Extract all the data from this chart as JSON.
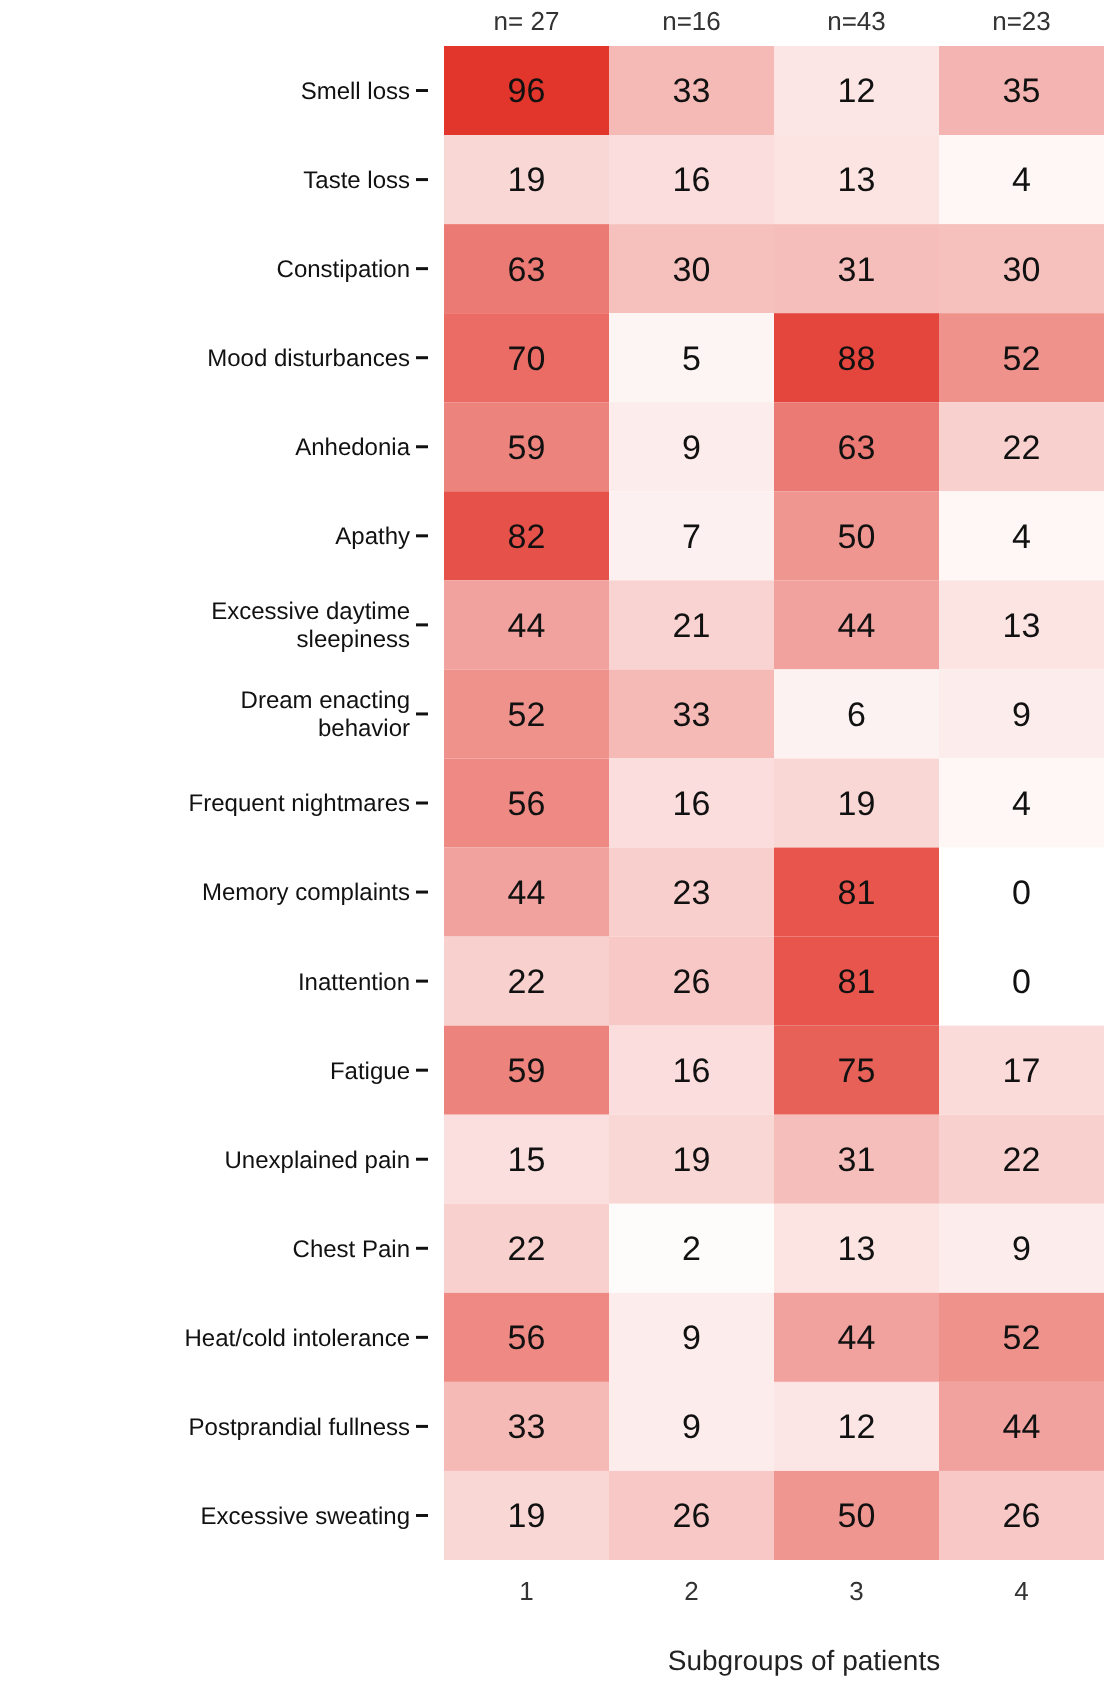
{
  "chart_data": {
    "type": "heatmap",
    "xlabel": "Subgroups of patients",
    "categories": [
      "1",
      "2",
      "3",
      "4"
    ],
    "y_categories": [
      "Smell loss",
      "Taste loss",
      "Constipation",
      "Mood disturbances",
      "Anhedonia",
      "Apathy",
      "Excessive daytime sleepiness",
      "Dream enacting behavior",
      "Frequent nightmares",
      "Memory complaints",
      "Inattention",
      "Fatigue",
      "Unexplained pain",
      "Chest Pain",
      "Heat/cold intolerance",
      "Postprandial fullness",
      "Excessive sweating"
    ],
    "cells": [
      [
        96,
        33,
        12,
        35
      ],
      [
        19,
        16,
        13,
        4
      ],
      [
        63,
        30,
        31,
        30
      ],
      [
        70,
        5,
        88,
        52
      ],
      [
        59,
        9,
        63,
        22
      ],
      [
        82,
        7,
        50,
        4
      ],
      [
        44,
        21,
        44,
        13
      ],
      [
        52,
        33,
        6,
        9
      ],
      [
        56,
        16,
        19,
        4
      ],
      [
        44,
        23,
        81,
        0
      ],
      [
        22,
        26,
        81,
        0
      ],
      [
        59,
        16,
        75,
        17
      ],
      [
        15,
        19,
        31,
        22
      ],
      [
        22,
        2,
        13,
        9
      ],
      [
        56,
        9,
        44,
        52
      ],
      [
        33,
        9,
        12,
        44
      ],
      [
        19,
        26,
        50,
        26
      ]
    ],
    "data_labels": true,
    "annotations": [
      "n= 27",
      "n=16",
      "n=43",
      "n=23"
    ]
  }
}
